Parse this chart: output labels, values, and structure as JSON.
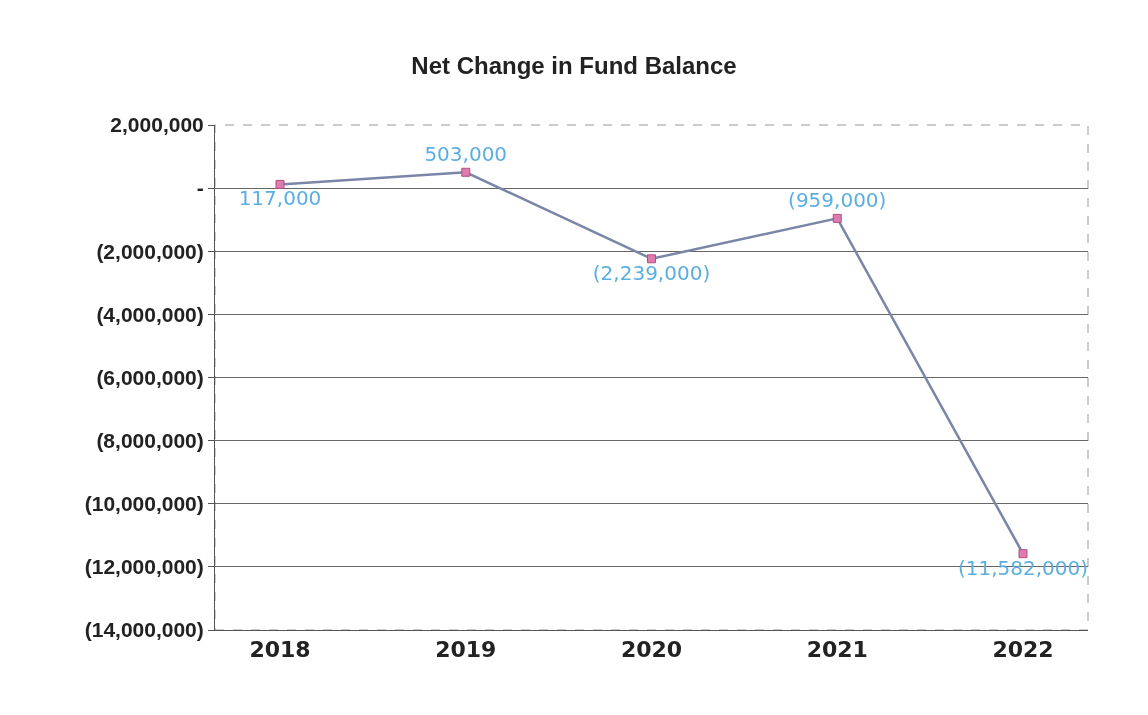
{
  "chart_data": {
    "type": "line",
    "title": "Net Change in Fund Balance",
    "categories": [
      "2018",
      "2019",
      "2020",
      "2021",
      "2022"
    ],
    "series": [
      {
        "color": "#7a86a8",
        "colors": [
          "#e07bb0",
          "#e07bb0",
          "#e07bb0",
          "#e07bb0",
          "#e07bb0"
        ],
        "values": [
          117000,
          503000,
          -2239000,
          -959000,
          -11582000
        ],
        "value_labels": [
          "117,000",
          "503,000",
          "(2,239,000)",
          "(959,000)",
          "(11,582,000)"
        ]
      }
    ],
    "ylim": [
      -14000000,
      2000000
    ],
    "yticks": [
      {
        "value": 2000000,
        "label": "2,000,000"
      },
      {
        "value": 0,
        "label": "-"
      },
      {
        "value": -2000000,
        "label": "(2,000,000)"
      },
      {
        "value": -4000000,
        "label": "(4,000,000)"
      },
      {
        "value": -6000000,
        "label": "(6,000,000)"
      },
      {
        "value": -8000000,
        "label": "(8,000,000)"
      },
      {
        "value": -10000000,
        "label": "(10,000,000)"
      },
      {
        "value": -12000000,
        "label": "(12,000,000)"
      },
      {
        "value": -14000000,
        "label": "(14,000,000)"
      }
    ],
    "grid": "y",
    "marker": "square",
    "line_style": "solid"
  }
}
